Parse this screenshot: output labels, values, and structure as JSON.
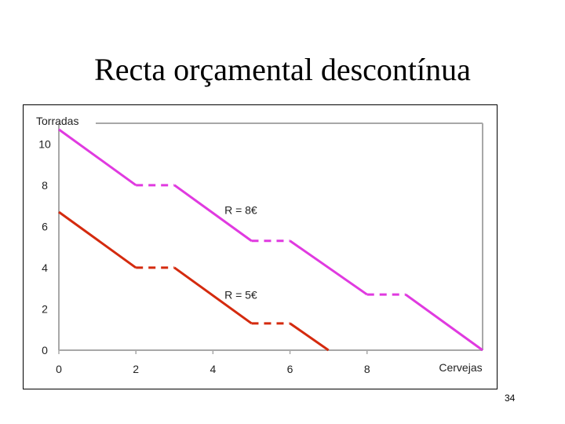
{
  "slide": {
    "title": "Recta orçamental descontínua",
    "page_number": "34"
  },
  "chart_data": {
    "type": "line",
    "title": "",
    "xlabel": "Cervejas",
    "ylabel": "Torradas",
    "xlim": [
      0,
      11
    ],
    "ylim": [
      0,
      11
    ],
    "x_ticks": [
      "0",
      "2",
      "4",
      "6",
      "8"
    ],
    "y_ticks": [
      "0",
      "2",
      "4",
      "6",
      "8",
      "10"
    ],
    "grid": false,
    "series": [
      {
        "name": "R = 8€",
        "color": "#e03ae0",
        "segments": [
          {
            "style": "solid",
            "points": [
              [
                0,
                10.7
              ],
              [
                2,
                8
              ]
            ]
          },
          {
            "style": "dashed",
            "points": [
              [
                2,
                8
              ],
              [
                3,
                8
              ]
            ]
          },
          {
            "style": "solid",
            "points": [
              [
                3,
                8
              ],
              [
                5,
                5.3
              ]
            ]
          },
          {
            "style": "dashed",
            "points": [
              [
                5,
                5.3
              ],
              [
                6,
                5.3
              ]
            ]
          },
          {
            "style": "solid",
            "points": [
              [
                6,
                5.3
              ],
              [
                8,
                2.7
              ]
            ]
          },
          {
            "style": "dashed",
            "points": [
              [
                8,
                2.7
              ],
              [
                9,
                2.7
              ]
            ]
          },
          {
            "style": "solid",
            "points": [
              [
                9,
                2.7
              ],
              [
                11,
                0
              ]
            ]
          }
        ]
      },
      {
        "name": "R = 5€",
        "color": "#d42a0e",
        "segments": [
          {
            "style": "solid",
            "points": [
              [
                0,
                6.7
              ],
              [
                2,
                4
              ]
            ]
          },
          {
            "style": "dashed",
            "points": [
              [
                2,
                4
              ],
              [
                3,
                4
              ]
            ]
          },
          {
            "style": "solid",
            "points": [
              [
                3,
                4
              ],
              [
                5,
                1.3
              ]
            ]
          },
          {
            "style": "dashed",
            "points": [
              [
                5,
                1.3
              ],
              [
                6,
                1.3
              ]
            ]
          },
          {
            "style": "solid",
            "points": [
              [
                6,
                1.3
              ],
              [
                7,
                0
              ]
            ]
          }
        ]
      }
    ],
    "annotations": [
      {
        "text": "R = 8€",
        "x": 4.3,
        "y": 6.6
      },
      {
        "text": "R = 5€",
        "x": 4.3,
        "y": 2.5
      }
    ]
  }
}
